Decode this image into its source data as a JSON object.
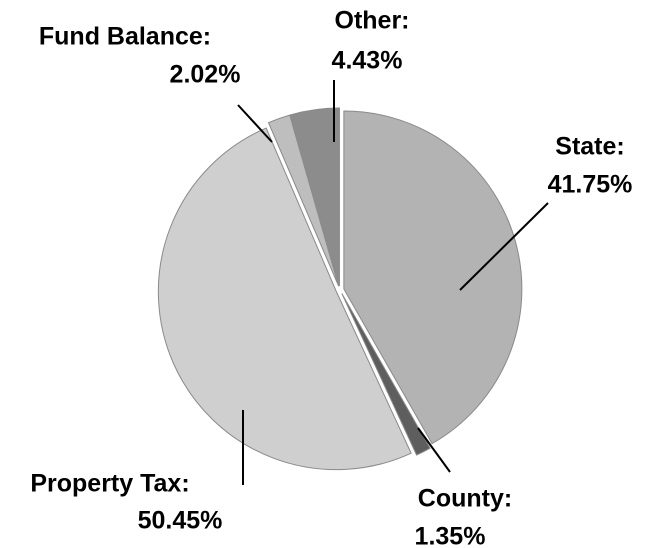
{
  "chart_data": {
    "type": "pie",
    "categories": [
      "State:",
      "County:",
      "Property Tax:",
      "Fund Balance:",
      "Other:"
    ],
    "values": [
      41.75,
      1.35,
      50.45,
      2.02,
      4.43
    ],
    "value_labels": [
      "41.75%",
      "1.35%",
      "50.45%",
      "2.02%",
      "4.43%"
    ],
    "colors": [
      "#b3b3b3",
      "#5e5e5e",
      "#cfcfcf",
      "#bebebe",
      "#8c8c8c"
    ]
  }
}
